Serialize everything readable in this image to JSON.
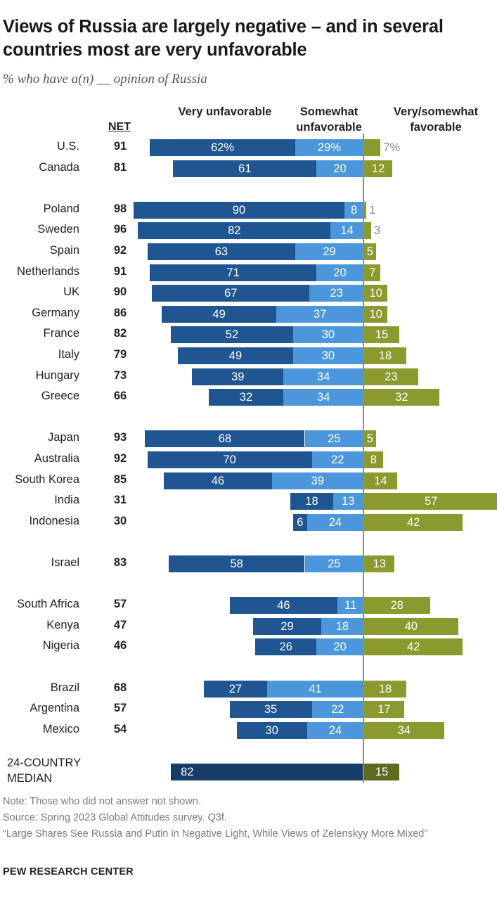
{
  "title": "Views of Russia are largely negative – and in several countries most are very unfavorable",
  "subtitle": "% who have a(n) __ opinion of Russia",
  "header": {
    "net": "NET",
    "very_unfavorable": "Very unfavorable",
    "somewhat_unfavorable": "Somewhat unfavorable",
    "favorable": "Very/somewhat favorable"
  },
  "colors": {
    "very_unfavorable": "#1f5591",
    "somewhat_unfavorable": "#4c97db",
    "favorable": "#8a9a2f",
    "median_very_unfavorable": "#163c68",
    "median_favorable": "#5e6b1f"
  },
  "chart_data": {
    "type": "bar",
    "stacked": "diverging",
    "series_names": [
      "Very unfavorable",
      "Somewhat unfavorable",
      "Very/somewhat favorable"
    ],
    "rows": [
      {
        "country": "U.S.",
        "net": 91,
        "very": 62,
        "somewhat": 29,
        "favorable": 7,
        "very_label": "62%",
        "somewhat_label": "29%",
        "favorable_label": "7%"
      },
      {
        "country": "Canada",
        "net": 81,
        "very": 61,
        "somewhat": 20,
        "favorable": 12,
        "very_label": "61",
        "somewhat_label": "20",
        "favorable_label": "12"
      },
      {
        "country": "Poland",
        "net": 98,
        "very": 90,
        "somewhat": 8,
        "favorable": 1,
        "very_label": "90",
        "somewhat_label": "8",
        "favorable_label": "1"
      },
      {
        "country": "Sweden",
        "net": 96,
        "very": 82,
        "somewhat": 14,
        "favorable": 3,
        "very_label": "82",
        "somewhat_label": "14",
        "favorable_label": "3"
      },
      {
        "country": "Spain",
        "net": 92,
        "very": 63,
        "somewhat": 29,
        "favorable": 5,
        "very_label": "63",
        "somewhat_label": "29",
        "favorable_label": "5"
      },
      {
        "country": "Netherlands",
        "net": 91,
        "very": 71,
        "somewhat": 20,
        "favorable": 7,
        "very_label": "71",
        "somewhat_label": "20",
        "favorable_label": "7"
      },
      {
        "country": "UK",
        "net": 90,
        "very": 67,
        "somewhat": 23,
        "favorable": 10,
        "very_label": "67",
        "somewhat_label": "23",
        "favorable_label": "10"
      },
      {
        "country": "Germany",
        "net": 86,
        "very": 49,
        "somewhat": 37,
        "favorable": 10,
        "very_label": "49",
        "somewhat_label": "37",
        "favorable_label": "10"
      },
      {
        "country": "France",
        "net": 82,
        "very": 52,
        "somewhat": 30,
        "favorable": 15,
        "very_label": "52",
        "somewhat_label": "30",
        "favorable_label": "15"
      },
      {
        "country": "Italy",
        "net": 79,
        "very": 49,
        "somewhat": 30,
        "favorable": 18,
        "very_label": "49",
        "somewhat_label": "30",
        "favorable_label": "18"
      },
      {
        "country": "Hungary",
        "net": 73,
        "very": 39,
        "somewhat": 34,
        "favorable": 23,
        "very_label": "39",
        "somewhat_label": "34",
        "favorable_label": "23"
      },
      {
        "country": "Greece",
        "net": 66,
        "very": 32,
        "somewhat": 34,
        "favorable": 32,
        "very_label": "32",
        "somewhat_label": "34",
        "favorable_label": "32"
      },
      {
        "country": "Japan",
        "net": 93,
        "very": 68,
        "somewhat": 25,
        "favorable": 5,
        "very_label": "68",
        "somewhat_label": "25",
        "favorable_label": "5"
      },
      {
        "country": "Australia",
        "net": 92,
        "very": 70,
        "somewhat": 22,
        "favorable": 8,
        "very_label": "70",
        "somewhat_label": "22",
        "favorable_label": "8"
      },
      {
        "country": "South Korea",
        "net": 85,
        "very": 46,
        "somewhat": 39,
        "favorable": 14,
        "very_label": "46",
        "somewhat_label": "39",
        "favorable_label": "14"
      },
      {
        "country": "India",
        "net": 31,
        "very": 18,
        "somewhat": 13,
        "favorable": 57,
        "very_label": "18",
        "somewhat_label": "13",
        "favorable_label": "57"
      },
      {
        "country": "Indonesia",
        "net": 30,
        "very": 6,
        "somewhat": 24,
        "favorable": 42,
        "very_label": "6",
        "somewhat_label": "24",
        "favorable_label": "42"
      },
      {
        "country": "Israel",
        "net": 83,
        "very": 58,
        "somewhat": 25,
        "favorable": 13,
        "very_label": "58",
        "somewhat_label": "25",
        "favorable_label": "13"
      },
      {
        "country": "South Africa",
        "net": 57,
        "very": 46,
        "somewhat": 11,
        "favorable": 28,
        "very_label": "46",
        "somewhat_label": "11",
        "favorable_label": "28"
      },
      {
        "country": "Kenya",
        "net": 47,
        "very": 29,
        "somewhat": 18,
        "favorable": 40,
        "very_label": "29",
        "somewhat_label": "18",
        "favorable_label": "40"
      },
      {
        "country": "Nigeria",
        "net": 46,
        "very": 26,
        "somewhat": 20,
        "favorable": 42,
        "very_label": "26",
        "somewhat_label": "20",
        "favorable_label": "42"
      },
      {
        "country": "Brazil",
        "net": 68,
        "very": 27,
        "somewhat": 41,
        "favorable": 18,
        "very_label": "27",
        "somewhat_label": "41",
        "favorable_label": "18"
      },
      {
        "country": "Argentina",
        "net": 57,
        "very": 35,
        "somewhat": 22,
        "favorable": 17,
        "very_label": "35",
        "somewhat_label": "22",
        "favorable_label": "17"
      },
      {
        "country": "Mexico",
        "net": 54,
        "very": 30,
        "somewhat": 24,
        "favorable": 34,
        "very_label": "30",
        "somewhat_label": "24",
        "favorable_label": "34"
      }
    ],
    "median": {
      "label": "24-COUNTRY MEDIAN",
      "very": 82,
      "favorable": 15,
      "very_label": "82",
      "favorable_label": "15"
    }
  },
  "footer": {
    "note": "Note: Those who did not answer not shown.",
    "source": "Source: Spring 2023 Global Attitudes survey. Q3f.",
    "report": "“Large Shares See Russia and Putin in Negative Light, While Views of Zelenskyy More Mixed”",
    "brand": "PEW RESEARCH CENTER"
  }
}
